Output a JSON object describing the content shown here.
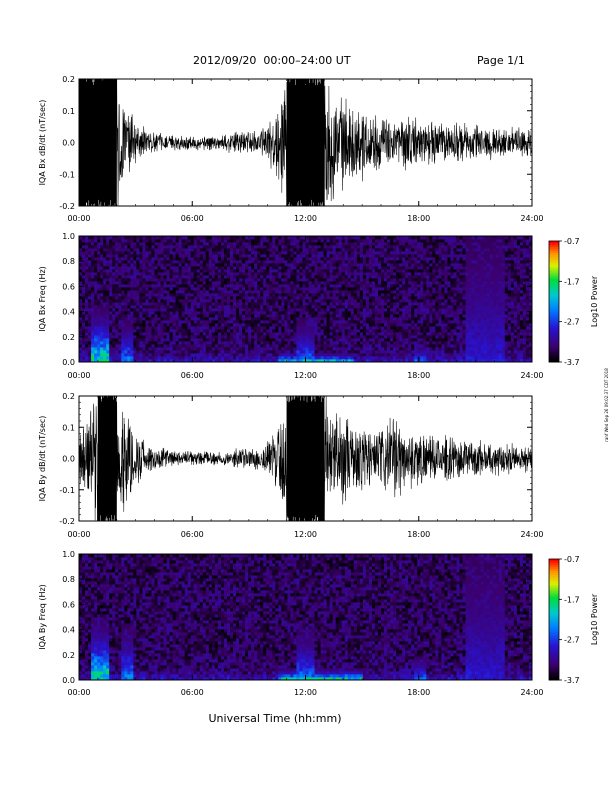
{
  "header": {
    "title": "2012/09/20  00:00–24:00 UT",
    "page": "Page 1/1"
  },
  "footer": {
    "xlabel": "Universal Time (hh:mm)"
  },
  "side_stamp": "ranf Wed Sep 26 09:02:37 CDT 2018",
  "colorbar": {
    "label": "Log10 Power",
    "ticks": [
      "-0.7",
      "-1.7",
      "-2.7",
      "-3.7"
    ],
    "range": [
      -3.7,
      -0.7
    ]
  },
  "chart_data": [
    {
      "type": "line",
      "title": "",
      "ylabel": "IQA Bx dB/dt (nT/sec)",
      "xlabel": "",
      "xlim": [
        0,
        24
      ],
      "ylim": [
        -0.2,
        0.2
      ],
      "x_tick_labels": [
        "00:00",
        "06:00",
        "12:00",
        "18:00",
        "24:00"
      ],
      "y_tick_labels": [
        "0.2",
        "0.1",
        "0.0",
        "-0.1",
        "-0.2"
      ],
      "series": [
        {
          "x": [
            0,
            0.5,
            1.0,
            1.5,
            2.0,
            2.5,
            3.0,
            3.5,
            4.0,
            4.5,
            5.0,
            5.5,
            6.0,
            6.5,
            7.0,
            7.5,
            8.0,
            8.5,
            9.0,
            9.5,
            10.0,
            10.5,
            11.0,
            11.5,
            12.0,
            12.5,
            13.0,
            13.5,
            14.0,
            14.5,
            15.0,
            15.5,
            16.0,
            16.5,
            17.0,
            17.5,
            18.0,
            18.5,
            19.0,
            19.5,
            20.0,
            20.5,
            21.0,
            21.5,
            22.0,
            22.5,
            23.0,
            23.5,
            24.0
          ],
          "envelope": [
            0.2,
            0.2,
            0.2,
            0.2,
            0.2,
            0.1,
            0.06,
            0.04,
            0.03,
            0.02,
            0.02,
            0.02,
            0.02,
            0.02,
            0.02,
            0.02,
            0.03,
            0.03,
            0.03,
            0.03,
            0.05,
            0.1,
            0.2,
            0.2,
            0.2,
            0.2,
            0.2,
            0.15,
            0.12,
            0.1,
            0.1,
            0.08,
            0.07,
            0.06,
            0.07,
            0.08,
            0.06,
            0.06,
            0.06,
            0.05,
            0.06,
            0.05,
            0.05,
            0.05,
            0.04,
            0.04,
            0.04,
            0.04,
            0.04
          ]
        }
      ]
    },
    {
      "type": "heatmap",
      "title": "",
      "ylabel": "IQA Bx Freq (Hz)",
      "xlabel": "",
      "xlim": [
        0,
        24
      ],
      "ylim": [
        0,
        1.0
      ],
      "x_tick_labels": [
        "00:00",
        "06:00",
        "12:00",
        "18:00",
        "24:00"
      ],
      "y_tick_labels": [
        "1.0",
        "0.8",
        "0.6",
        "0.4",
        "0.2",
        "0.0"
      ],
      "z_range": [
        -3.7,
        -0.7
      ],
      "background_log10_power": -3.4,
      "features": [
        {
          "x": [
            0.6,
            1.6
          ],
          "y_max": 0.45,
          "peak_log10_power": -1.5
        },
        {
          "x": [
            2.2,
            2.8
          ],
          "y_max": 0.35,
          "peak_log10_power": -2.2
        },
        {
          "x": [
            10.5,
            14.5
          ],
          "y_max": 0.08,
          "peak_log10_power": -1.6
        },
        {
          "x": [
            11.5,
            12.5
          ],
          "y_max": 0.35,
          "peak_log10_power": -2.3
        },
        {
          "x": [
            17.8,
            18.4
          ],
          "y_max": 0.15,
          "peak_log10_power": -2.3
        },
        {
          "x": [
            20.5,
            22.5
          ],
          "y_max": 1.0,
          "peak_log10_power": -2.8
        }
      ]
    },
    {
      "type": "line",
      "title": "",
      "ylabel": "IQA By dB/dt (nT/sec)",
      "xlabel": "",
      "xlim": [
        0,
        24
      ],
      "ylim": [
        -0.2,
        0.2
      ],
      "x_tick_labels": [
        "00:00",
        "06:00",
        "12:00",
        "18:00",
        "24:00"
      ],
      "y_tick_labels": [
        "0.2",
        "0.1",
        "0.0",
        "-0.1",
        "-0.2"
      ],
      "series": [
        {
          "x": [
            0,
            0.5,
            1.0,
            1.5,
            2.0,
            2.5,
            3.0,
            3.5,
            4.0,
            4.5,
            5.0,
            5.5,
            6.0,
            6.5,
            7.0,
            7.5,
            8.0,
            8.5,
            9.0,
            9.5,
            10.0,
            10.5,
            11.0,
            11.5,
            12.0,
            12.5,
            13.0,
            13.5,
            14.0,
            14.5,
            15.0,
            15.5,
            16.0,
            16.5,
            17.0,
            17.5,
            18.0,
            18.5,
            19.0,
            19.5,
            20.0,
            20.5,
            21.0,
            21.5,
            22.0,
            22.5,
            23.0,
            23.5,
            24.0
          ],
          "envelope": [
            0.08,
            0.12,
            0.2,
            0.2,
            0.2,
            0.15,
            0.08,
            0.05,
            0.03,
            0.03,
            0.02,
            0.02,
            0.02,
            0.02,
            0.02,
            0.02,
            0.02,
            0.03,
            0.03,
            0.04,
            0.05,
            0.1,
            0.2,
            0.2,
            0.2,
            0.2,
            0.2,
            0.15,
            0.12,
            0.1,
            0.1,
            0.09,
            0.08,
            0.12,
            0.1,
            0.08,
            0.08,
            0.06,
            0.06,
            0.06,
            0.06,
            0.05,
            0.05,
            0.05,
            0.05,
            0.04,
            0.04,
            0.04,
            0.04
          ]
        }
      ]
    },
    {
      "type": "heatmap",
      "title": "",
      "ylabel": "IQA By Freq (Hz)",
      "xlabel": "",
      "xlim": [
        0,
        24
      ],
      "ylim": [
        0,
        1.0
      ],
      "x_tick_labels": [
        "00:00",
        "06:00",
        "12:00",
        "18:00",
        "24:00"
      ],
      "y_tick_labels": [
        "1.0",
        "0.8",
        "0.6",
        "0.4",
        "0.2",
        "0.0"
      ],
      "z_range": [
        -3.7,
        -0.7
      ],
      "background_log10_power": -3.4,
      "features": [
        {
          "x": [
            0.6,
            1.6
          ],
          "y_max": 0.5,
          "peak_log10_power": -1.5
        },
        {
          "x": [
            2.2,
            2.8
          ],
          "y_max": 0.45,
          "peak_log10_power": -2.2
        },
        {
          "x": [
            10.5,
            15.0
          ],
          "y_max": 0.1,
          "peak_log10_power": -1.5
        },
        {
          "x": [
            11.5,
            12.5
          ],
          "y_max": 0.4,
          "peak_log10_power": -2.2
        },
        {
          "x": [
            17.8,
            18.4
          ],
          "y_max": 0.2,
          "peak_log10_power": -2.3
        },
        {
          "x": [
            20.5,
            22.5
          ],
          "y_max": 1.0,
          "peak_log10_power": -2.8
        }
      ]
    }
  ]
}
